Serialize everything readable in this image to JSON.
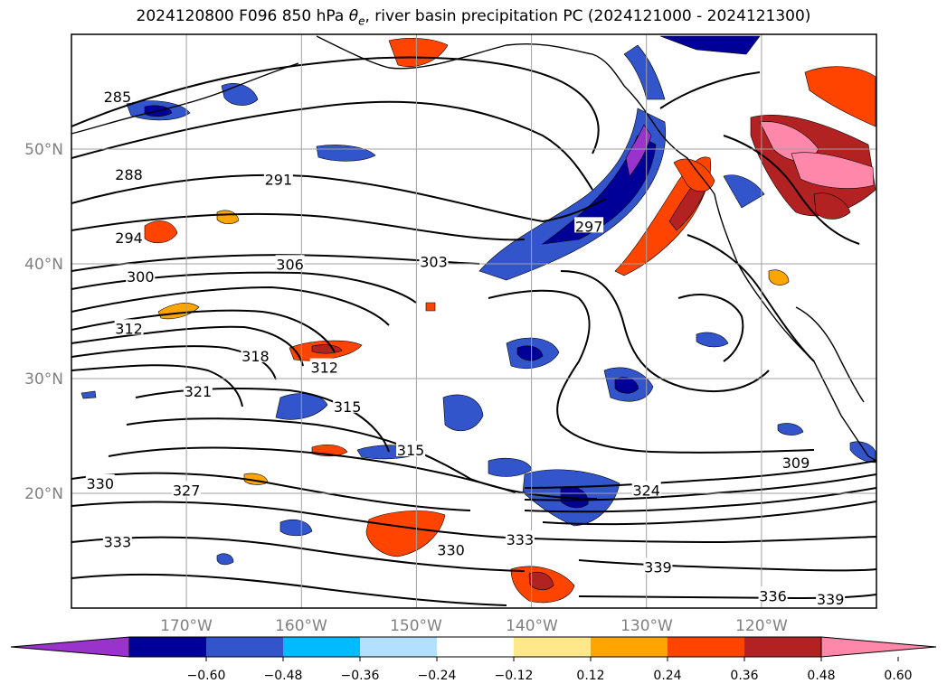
{
  "title": {
    "prefix": "2024120800 F096 850 hPa ",
    "symbol": "θ",
    "subscript": "e",
    "suffix": ", river basin precipitation PC (2024121000 - 2024121300)"
  },
  "map": {
    "lon_labels": [
      "170°W",
      "160°W",
      "150°W",
      "140°W",
      "130°W",
      "120°W"
    ],
    "lat_labels": [
      "50°N",
      "40°N",
      "30°N",
      "20°N"
    ],
    "lon_range": [
      -180,
      -110
    ],
    "lat_range": [
      10,
      60
    ],
    "gridlines": true,
    "contour_labels": [
      {
        "text": "285",
        "lon": -176,
        "lat": 54.5
      },
      {
        "text": "288",
        "lon": -175,
        "lat": 47.7
      },
      {
        "text": "291",
        "lon": -162,
        "lat": 47.3
      },
      {
        "text": "294",
        "lon": -175,
        "lat": 42.2
      },
      {
        "text": "297",
        "lon": -135,
        "lat": 43.2
      },
      {
        "text": "300",
        "lon": -174,
        "lat": 38.8
      },
      {
        "text": "303",
        "lon": -148.5,
        "lat": 40.1
      },
      {
        "text": "306",
        "lon": -161,
        "lat": 39.9
      },
      {
        "text": "309",
        "lon": -117,
        "lat": 22.6
      },
      {
        "text": "312",
        "lon": -175,
        "lat": 34.3
      },
      {
        "text": "312",
        "lon": -158,
        "lat": 30.9
      },
      {
        "text": "315",
        "lon": -156,
        "lat": 27.5
      },
      {
        "text": "315",
        "lon": -150.5,
        "lat": 23.7
      },
      {
        "text": "318",
        "lon": -164,
        "lat": 31.9
      },
      {
        "text": "321",
        "lon": -169,
        "lat": 28.8
      },
      {
        "text": "324",
        "lon": -130,
        "lat": 20.2
      },
      {
        "text": "327",
        "lon": -170,
        "lat": 20.2
      },
      {
        "text": "330",
        "lon": -177.5,
        "lat": 20.8
      },
      {
        "text": "330",
        "lon": -147,
        "lat": 15.0
      },
      {
        "text": "333",
        "lon": -176,
        "lat": 15.7
      },
      {
        "text": "333",
        "lon": -141,
        "lat": 15.9
      },
      {
        "text": "336",
        "lon": -119,
        "lat": 11.0
      },
      {
        "text": "339",
        "lon": -129,
        "lat": 13.5
      },
      {
        "text": "339",
        "lon": -114,
        "lat": 10.7
      }
    ]
  },
  "colorbar": {
    "ticks": [
      "−0.60",
      "−0.48",
      "−0.36",
      "−0.24",
      "−0.12",
      "0.12",
      "0.24",
      "0.36",
      "0.48",
      "0.60"
    ],
    "colors": [
      "#9933cc",
      "#000099",
      "#3355cc",
      "#00bbff",
      "#b3e0ff",
      "#ffffff",
      "#ffe88a",
      "#ffa500",
      "#ff4400",
      "#b22222",
      "#ff88aa"
    ]
  }
}
